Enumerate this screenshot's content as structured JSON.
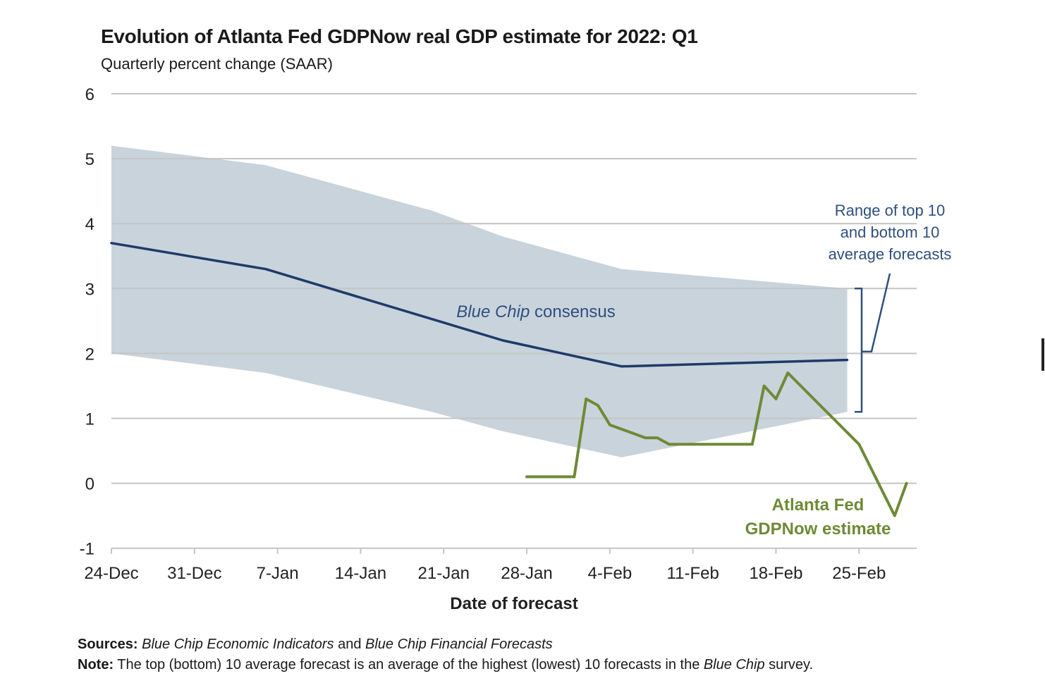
{
  "chart_data": {
    "type": "line",
    "title": "Evolution of Atlanta Fed GDPNow real GDP estimate for 2022: Q1",
    "subtitle": "Quarterly percent change (SAAR)",
    "xlabel": "Date of forecast",
    "ylabel": "",
    "ylim": [
      -1,
      6
    ],
    "y_ticks": [
      "6",
      "5",
      "4",
      "3",
      "2",
      "1",
      "0",
      "-1"
    ],
    "x_tick_labels": [
      "24-Dec",
      "31-Dec",
      "7-Jan",
      "14-Jan",
      "21-Jan",
      "28-Jan",
      "4-Feb",
      "11-Feb",
      "18-Feb",
      "25-Feb"
    ],
    "grid": true,
    "series": [
      {
        "name": "Blue Chip consensus",
        "color": "#1f3a68",
        "x": [
          "24-Dec",
          "6-Jan",
          "26-Jan",
          "5-Feb",
          "24-Feb"
        ],
        "values": [
          3.7,
          3.3,
          2.2,
          1.8,
          1.9
        ]
      },
      {
        "name": "Atlanta Fed GDPNow estimate",
        "color": "#6e8a36",
        "x": [
          "28-Jan",
          "1-Feb",
          "2-Feb",
          "3-Feb",
          "4-Feb",
          "7-Feb",
          "8-Feb",
          "9-Feb",
          "10-Feb",
          "16-Feb",
          "17-Feb",
          "18-Feb",
          "19-Feb",
          "25-Feb",
          "28-Feb",
          "1-Mar"
        ],
        "values": [
          0.1,
          0.1,
          1.3,
          1.2,
          0.9,
          0.7,
          0.7,
          0.6,
          0.6,
          0.6,
          1.5,
          1.3,
          1.7,
          0.6,
          -0.5,
          0.0
        ]
      }
    ],
    "range_band": {
      "name": "Range of top 10 and bottom 10 average forecasts",
      "color": "#c9d3dc",
      "x": [
        "24-Dec",
        "6-Jan",
        "20-Jan",
        "26-Jan",
        "5-Feb",
        "24-Feb"
      ],
      "top": [
        5.2,
        4.9,
        4.2,
        3.8,
        3.3,
        3.0
      ],
      "bottom": [
        2.0,
        1.7,
        1.1,
        0.8,
        0.4,
        1.1
      ]
    },
    "annotations": {
      "consensus_italic": "Blue Chip",
      "consensus_rest": " consensus",
      "range_lines": [
        "Range of top 10",
        "and bottom 10",
        "average forecasts"
      ],
      "gdpnow_lines": [
        "Atlanta Fed",
        "GDPNow estimate"
      ]
    }
  },
  "footer": {
    "sources_label": "Sources:",
    "sources_parts": [
      {
        "text": " Blue Chip Economic Indicators",
        "italic": true
      },
      {
        "text": " and ",
        "italic": false
      },
      {
        "text": "Blue Chip Financial Forecasts",
        "italic": true
      }
    ],
    "note_label": "Note:",
    "note_parts": [
      {
        "text": " The top (bottom) 10 average forecast is an average of the highest (lowest) 10 forecasts in the ",
        "italic": false
      },
      {
        "text": "Blue Chip",
        "italic": true
      },
      {
        "text": " survey.",
        "italic": false
      }
    ]
  }
}
